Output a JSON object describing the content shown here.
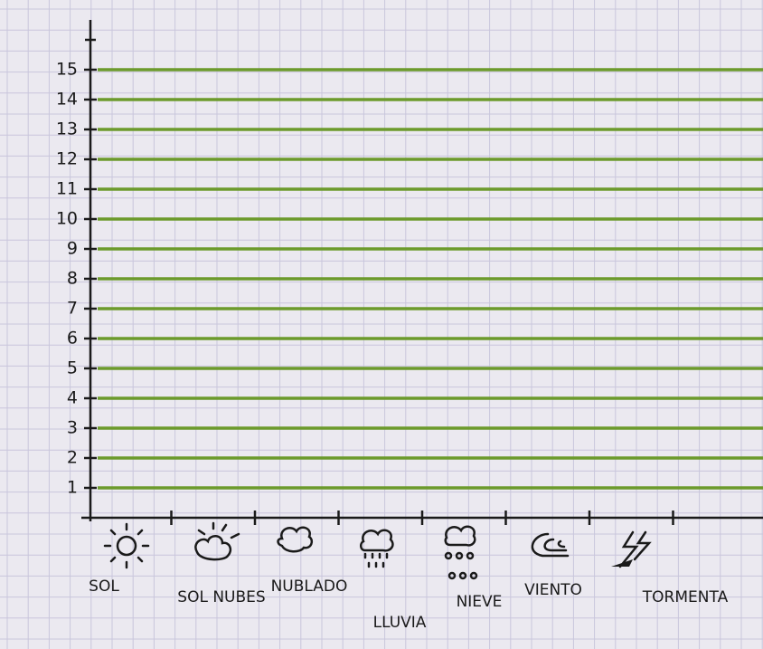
{
  "chart_data": {
    "type": "bar",
    "categories": [
      "SOL",
      "SOL NUBES",
      "NUBLADO",
      "LLUVIA",
      "NIEVE",
      "VIENTO",
      "TORMENTA"
    ],
    "ylim": [
      0,
      16
    ],
    "yticks": [
      1,
      2,
      3,
      4,
      5,
      6,
      7,
      8,
      9,
      10,
      11,
      12,
      13,
      14,
      15
    ],
    "grid": true,
    "grid_color": "#6c9a2c"
  }
}
